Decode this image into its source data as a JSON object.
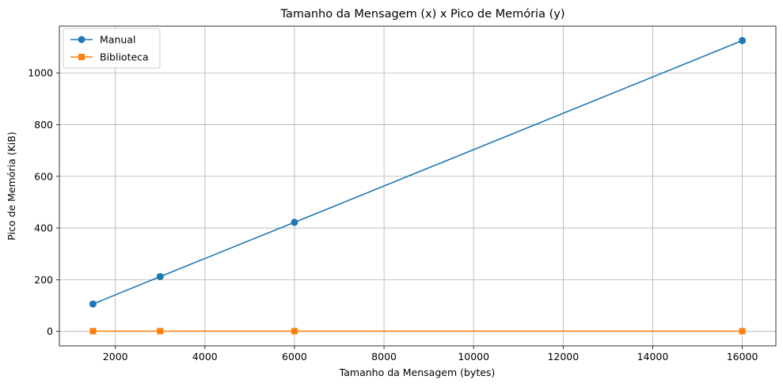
{
  "chart_data": {
    "type": "line",
    "title": "Tamanho da Mensagem (x) x Pico de Memória (y)",
    "xlabel": "Tamanho da Mensagem (bytes)",
    "ylabel": "Pico de Memória (KiB)",
    "xlim": [
      750,
      16750
    ],
    "ylim": [
      -56,
      1181
    ],
    "xticks": [
      2000,
      4000,
      6000,
      8000,
      10000,
      12000,
      14000,
      16000
    ],
    "yticks": [
      0,
      200,
      400,
      600,
      800,
      1000
    ],
    "grid": true,
    "legend_position": "top-left",
    "series": [
      {
        "name": "Manual",
        "color": "#1f77b4",
        "marker": "circle",
        "x": [
          1500,
          3000,
          6000,
          16000
        ],
        "y": [
          106,
          212,
          422,
          1125
        ]
      },
      {
        "name": "Biblioteca",
        "color": "#ff7f0e",
        "marker": "square",
        "x": [
          1500,
          3000,
          6000,
          16000
        ],
        "y": [
          1,
          1,
          1,
          1
        ]
      }
    ]
  }
}
